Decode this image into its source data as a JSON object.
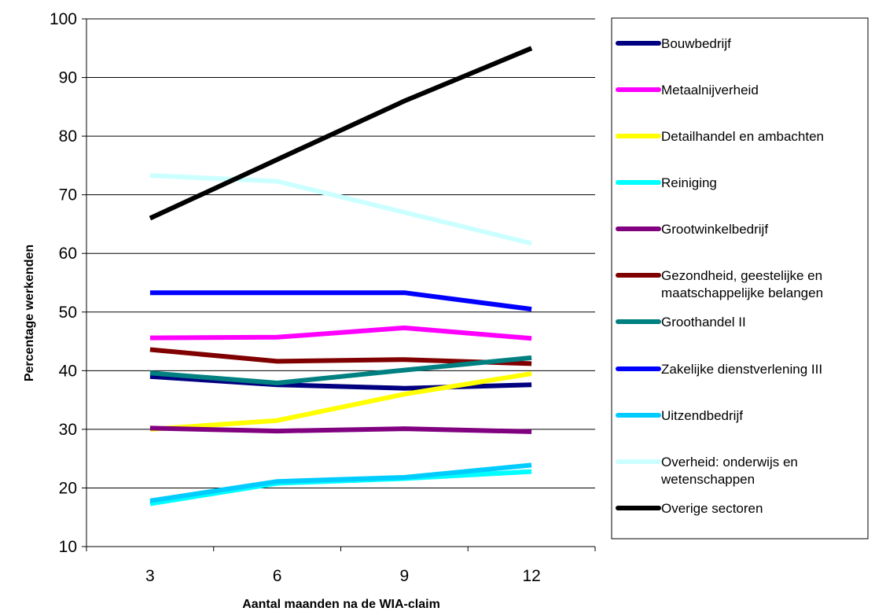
{
  "chart_data": {
    "type": "line",
    "xlabel": "Aantal maanden na de WIA-claim",
    "ylabel": "Percentage werkenden",
    "x": [
      3,
      6,
      9,
      12
    ],
    "ylim": [
      10,
      100
    ],
    "yticks": [
      10,
      20,
      30,
      40,
      50,
      60,
      70,
      80,
      90,
      100
    ],
    "grid": "horizontal",
    "legend_position": "right",
    "series": [
      {
        "name": "Bouwbedrijf",
        "color": "#000080",
        "values": [
          39,
          37.6,
          37,
          37.6
        ]
      },
      {
        "name": "Metaalnijverheid",
        "color": "#ff00ff",
        "values": [
          45.6,
          45.7,
          47.3,
          45.5
        ]
      },
      {
        "name": "Detailhandel en ambachten",
        "color": "#ffff00",
        "values": [
          30,
          31.5,
          36,
          39.5
        ]
      },
      {
        "name": "Reiniging",
        "color": "#00ffff",
        "values": [
          17.3,
          20.8,
          21.6,
          22.8
        ]
      },
      {
        "name": "Grootwinkelbedrijf",
        "color": "#800080",
        "values": [
          30.2,
          29.7,
          30.1,
          29.6
        ]
      },
      {
        "name": "Gezondheid, geestelijke en maatschappelijke belangen",
        "label_lines": [
          "Gezondheid, geestelijke en",
          "maatschappelijke belangen"
        ],
        "color": "#800000",
        "values": [
          43.6,
          41.6,
          41.9,
          41.2
        ]
      },
      {
        "name": "Groothandel II",
        "color": "#008080",
        "values": [
          39.6,
          37.9,
          40.1,
          42.2
        ]
      },
      {
        "name": "Zakelijke dienstverlening III",
        "color": "#0000ff",
        "values": [
          53.3,
          53.3,
          53.3,
          50.5
        ]
      },
      {
        "name": "Uitzendbedrijf",
        "color": "#00ccff",
        "values": [
          17.8,
          21.1,
          21.8,
          23.9
        ]
      },
      {
        "name": "Overheid: onderwijs en wetenschappen",
        "label_lines": [
          "Overheid: onderwijs en",
          "wetenschappen"
        ],
        "color": "#ccffff",
        "values": [
          73.3,
          72.3,
          67,
          61.7
        ]
      },
      {
        "name": "Overige sectoren",
        "color": "#000000",
        "values": [
          66,
          76,
          86,
          95
        ]
      }
    ]
  }
}
